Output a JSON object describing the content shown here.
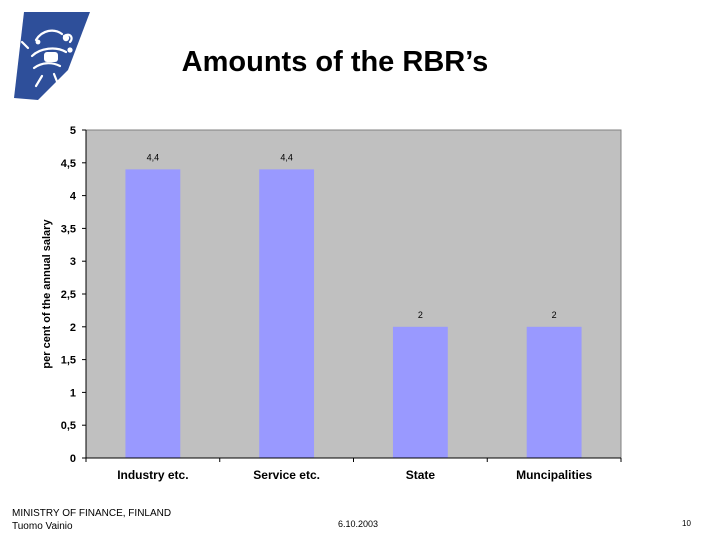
{
  "slide": {
    "title": "Amounts of the RBR’s",
    "footer_org": "MINISTRY OF FINANCE, FINLAND",
    "footer_author": "Tuomo Vainio",
    "footer_date": "6.10.2003",
    "page_number": "10"
  },
  "colors": {
    "plot_background": "#c0c0c0",
    "bar_fill": "#9999ff",
    "logo_blue": "#2e4f9a"
  },
  "icons": {
    "logo": "finnish-lion-emblem-icon"
  },
  "chart_data": {
    "type": "bar",
    "categories": [
      "Industry etc.",
      "Service etc.",
      "State",
      "Muncipalities"
    ],
    "values": [
      4.4,
      4.4,
      2,
      2
    ],
    "data_labels": [
      "4,4",
      "4,4",
      "2",
      "2"
    ],
    "ylabel": "per cent of the annual salary",
    "ylim": [
      0,
      5
    ],
    "yticks": [
      "0",
      "0,5",
      "1",
      "1,5",
      "2",
      "2,5",
      "3",
      "3,5",
      "4",
      "4,5",
      "5"
    ],
    "grid": false,
    "legend": "none"
  }
}
